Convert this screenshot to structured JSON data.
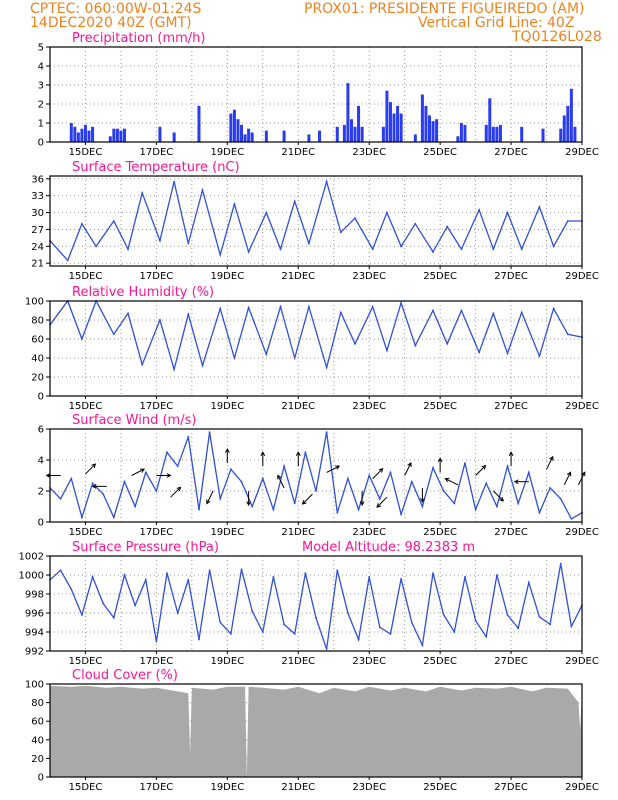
{
  "header": {
    "left_line1": "CPTEC:   060:00W-01:24S",
    "left_line2": "14DEC2020 40Z (GMT)",
    "station": "PROX01: PRESIDENTE FIGUEIREDO (AM)",
    "grid_note": "Vertical Grid Line: 40Z",
    "code": "TQ0126L028"
  },
  "colors": {
    "header": "#f0821e",
    "title": "#ff1493",
    "line": "#2f4fe0",
    "bar": "#2a3cf0",
    "cloud": "#a9a9a9"
  },
  "chart_data": [
    {
      "type": "bar",
      "title": "Precipitation (mm/h)",
      "x_tick_labels": [
        "15DEC",
        "17DEC",
        "19DEC",
        "21DEC",
        "23DEC",
        "25DEC",
        "27DEC",
        "29DEC"
      ],
      "x": [
        14.6,
        14.7,
        14.8,
        14.9,
        15.0,
        15.1,
        15.2,
        15.7,
        15.8,
        15.9,
        16.0,
        16.1,
        17.1,
        17.5,
        18.2,
        19.1,
        19.2,
        19.3,
        19.4,
        19.5,
        19.6,
        19.7,
        20.1,
        20.6,
        21.3,
        21.6,
        22.1,
        22.3,
        22.4,
        22.5,
        22.6,
        22.7,
        22.8,
        23.4,
        23.5,
        23.6,
        23.7,
        23.8,
        23.9,
        24.3,
        24.5,
        24.6,
        24.7,
        24.8,
        24.9,
        25.5,
        25.6,
        25.7,
        26.3,
        26.4,
        26.5,
        26.6,
        26.7,
        27.3,
        27.9,
        28.4,
        28.5,
        28.6,
        28.7,
        28.8
      ],
      "values": [
        1.0,
        0.8,
        0.5,
        0.7,
        0.9,
        0.6,
        0.8,
        0.3,
        0.7,
        0.7,
        0.6,
        0.7,
        0.8,
        0.5,
        1.9,
        1.5,
        1.7,
        1.2,
        0.9,
        0.4,
        0.7,
        0.5,
        0.6,
        0.6,
        0.4,
        0.6,
        0.8,
        0.9,
        3.1,
        1.2,
        0.8,
        1.9,
        0.8,
        0.8,
        2.7,
        2.1,
        1.5,
        1.9,
        1.5,
        0.4,
        2.5,
        1.9,
        1.4,
        1.1,
        1.2,
        0.3,
        1.0,
        0.9,
        0.9,
        2.3,
        0.8,
        0.8,
        0.9,
        0.8,
        0.7,
        0.7,
        1.4,
        1.9,
        2.8,
        0.8
      ],
      "ylim": [
        0,
        5
      ],
      "y_ticks": [
        "0",
        "1",
        "2",
        "3",
        "4",
        "5"
      ]
    },
    {
      "type": "line",
      "title": "Surface Temperature (nC)",
      "x_tick_labels": [
        "15DEC",
        "17DEC",
        "19DEC",
        "21DEC",
        "23DEC",
        "25DEC",
        "27DEC",
        "29DEC"
      ],
      "x": [
        14.0,
        14.5,
        14.9,
        15.3,
        15.8,
        16.2,
        16.6,
        17.1,
        17.5,
        17.9,
        18.3,
        18.8,
        19.2,
        19.6,
        20.1,
        20.5,
        20.9,
        21.3,
        21.8,
        22.2,
        22.6,
        23.1,
        23.5,
        23.9,
        24.3,
        24.8,
        25.2,
        25.6,
        26.1,
        26.5,
        26.9,
        27.3,
        27.8,
        28.2,
        28.6,
        29.0
      ],
      "values": [
        25.0,
        21.5,
        28.0,
        24.0,
        28.5,
        23.5,
        33.5,
        25.0,
        35.5,
        24.5,
        34.0,
        22.5,
        31.5,
        23.0,
        30.0,
        23.5,
        32.0,
        24.5,
        35.5,
        26.5,
        29.0,
        23.5,
        30.0,
        24.0,
        28.0,
        23.0,
        27.5,
        23.5,
        30.5,
        23.5,
        30.0,
        23.5,
        31.0,
        24.0,
        28.5,
        28.5
      ],
      "ylim": [
        20.5,
        36.5
      ],
      "y_ticks": [
        "21",
        "24",
        "27",
        "30",
        "33",
        "36"
      ]
    },
    {
      "type": "line",
      "title": "Relative Humidity (%)",
      "x_tick_labels": [
        "15DEC",
        "17DEC",
        "19DEC",
        "21DEC",
        "23DEC",
        "25DEC",
        "27DEC",
        "29DEC"
      ],
      "x": [
        14.0,
        14.5,
        14.9,
        15.3,
        15.8,
        16.2,
        16.6,
        17.1,
        17.5,
        17.9,
        18.3,
        18.8,
        19.2,
        19.6,
        20.1,
        20.5,
        20.9,
        21.3,
        21.8,
        22.2,
        22.6,
        23.1,
        23.5,
        23.9,
        24.3,
        24.8,
        25.2,
        25.6,
        26.1,
        26.5,
        26.9,
        27.3,
        27.8,
        28.2,
        28.6,
        29.0
      ],
      "values": [
        75,
        100,
        60,
        100,
        65,
        87,
        33,
        80,
        28,
        86,
        32,
        92,
        40,
        93,
        44,
        94,
        40,
        94,
        30,
        88,
        55,
        94,
        48,
        98,
        53,
        90,
        55,
        90,
        46,
        87,
        45,
        88,
        42,
        92,
        65,
        62
      ],
      "ylim": [
        0,
        100
      ],
      "y_ticks": [
        "0",
        "20",
        "40",
        "60",
        "80",
        "100"
      ]
    },
    {
      "type": "line",
      "title": "Surface Wind (m/s)",
      "x_tick_labels": [
        "15DEC",
        "17DEC",
        "19DEC",
        "21DEC",
        "23DEC",
        "25DEC",
        "27DEC",
        "29DEC"
      ],
      "x": [
        14.0,
        14.3,
        14.6,
        14.9,
        15.2,
        15.5,
        15.8,
        16.1,
        16.4,
        16.7,
        17.0,
        17.3,
        17.6,
        17.9,
        18.2,
        18.5,
        18.8,
        19.1,
        19.4,
        19.7,
        20.0,
        20.3,
        20.6,
        20.9,
        21.2,
        21.5,
        21.8,
        22.1,
        22.4,
        22.7,
        23.0,
        23.3,
        23.6,
        23.9,
        24.2,
        24.5,
        24.8,
        25.1,
        25.4,
        25.7,
        26.0,
        26.3,
        26.6,
        26.9,
        27.2,
        27.5,
        27.8,
        28.1,
        28.4,
        28.7,
        29.0
      ],
      "values": [
        2.2,
        1.5,
        2.8,
        0.3,
        2.5,
        1.8,
        0.3,
        2.6,
        1.0,
        3.2,
        2.0,
        4.5,
        3.6,
        5.5,
        0.8,
        5.8,
        1.5,
        3.4,
        2.6,
        1.0,
        2.8,
        0.8,
        3.6,
        1.2,
        4.5,
        2.0,
        5.8,
        0.6,
        2.8,
        0.8,
        3.0,
        1.5,
        3.2,
        0.5,
        2.6,
        1.0,
        3.5,
        2.0,
        1.2,
        3.8,
        0.8,
        2.5,
        1.0,
        3.6,
        1.2,
        3.2,
        0.6,
        2.2,
        1.5,
        0.2,
        0.6
      ],
      "ylim": [
        0,
        6
      ],
      "y_ticks": [
        "0",
        "2",
        "4",
        "6"
      ],
      "vectors": [
        {
          "x": 14.3,
          "y": 3.0,
          "u": -1,
          "v": 0
        },
        {
          "x": 15.0,
          "y": 3.1,
          "u": 1,
          "v": 1
        },
        {
          "x": 15.6,
          "y": 2.3,
          "u": -1,
          "v": 0
        },
        {
          "x": 16.3,
          "y": 3.0,
          "u": 1,
          "v": 0.5
        },
        {
          "x": 17.0,
          "y": 3.0,
          "u": 1,
          "v": 0
        },
        {
          "x": 17.4,
          "y": 1.6,
          "u": 1,
          "v": 1
        },
        {
          "x": 18.6,
          "y": 2.0,
          "u": -0.5,
          "v": -1
        },
        {
          "x": 19.0,
          "y": 3.8,
          "u": 0,
          "v": 1
        },
        {
          "x": 19.6,
          "y": 2.0,
          "u": 0,
          "v": -1
        },
        {
          "x": 20.0,
          "y": 3.6,
          "u": 0,
          "v": 1
        },
        {
          "x": 20.6,
          "y": 2.2,
          "u": -0.5,
          "v": 1
        },
        {
          "x": 21.0,
          "y": 3.6,
          "u": 0,
          "v": 1
        },
        {
          "x": 21.4,
          "y": 1.8,
          "u": -1,
          "v": -1
        },
        {
          "x": 21.8,
          "y": 3.2,
          "u": 1,
          "v": 0.5
        },
        {
          "x": 22.8,
          "y": 2.0,
          "u": 0,
          "v": -1
        },
        {
          "x": 23.1,
          "y": 2.8,
          "u": 1,
          "v": 1
        },
        {
          "x": 23.5,
          "y": 1.6,
          "u": -0.5,
          "v": -0.5
        },
        {
          "x": 24.0,
          "y": 3.0,
          "u": 0.5,
          "v": 1
        },
        {
          "x": 24.5,
          "y": 2.2,
          "u": 0,
          "v": -1
        },
        {
          "x": 25.0,
          "y": 3.2,
          "u": 0,
          "v": 1
        },
        {
          "x": 25.5,
          "y": 2.4,
          "u": -1,
          "v": 0.5
        },
        {
          "x": 26.0,
          "y": 3.0,
          "u": 1,
          "v": 1
        },
        {
          "x": 26.5,
          "y": 2.0,
          "u": 0.5,
          "v": -0.5
        },
        {
          "x": 27.0,
          "y": 3.6,
          "u": 0,
          "v": 1
        },
        {
          "x": 27.5,
          "y": 2.6,
          "u": -1,
          "v": 0
        },
        {
          "x": 28.0,
          "y": 3.4,
          "u": 0.5,
          "v": 1
        },
        {
          "x": 28.5,
          "y": 2.4,
          "u": 0.5,
          "v": 1
        },
        {
          "x": 28.9,
          "y": 2.4,
          "u": 0.5,
          "v": 1
        }
      ]
    },
    {
      "type": "line",
      "title": "Surface Pressure (hPa)",
      "annotation": "Model Altitude: 98.2383 m",
      "x_tick_labels": [
        "15DEC",
        "17DEC",
        "19DEC",
        "21DEC",
        "23DEC",
        "25DEC",
        "27DEC",
        "29DEC"
      ],
      "x": [
        14.0,
        14.3,
        14.6,
        14.9,
        15.2,
        15.5,
        15.8,
        16.1,
        16.4,
        16.7,
        17.0,
        17.3,
        17.6,
        17.9,
        18.2,
        18.5,
        18.8,
        19.1,
        19.4,
        19.7,
        20.0,
        20.3,
        20.6,
        20.9,
        21.2,
        21.5,
        21.8,
        22.1,
        22.4,
        22.7,
        23.0,
        23.3,
        23.6,
        23.9,
        24.2,
        24.5,
        24.8,
        25.1,
        25.4,
        25.7,
        26.0,
        26.3,
        26.6,
        26.9,
        27.2,
        27.5,
        27.8,
        28.1,
        28.4,
        28.7,
        29.0
      ],
      "values": [
        999.5,
        1000.5,
        998.5,
        995.8,
        999.8,
        997.0,
        995.5,
        1000.0,
        996.8,
        999.5,
        993.0,
        1000.2,
        996.0,
        999.5,
        993.2,
        1000.5,
        995.0,
        993.8,
        1000.6,
        996.2,
        994.0,
        999.8,
        994.8,
        993.8,
        1000.2,
        995.5,
        992.2,
        1000.5,
        996.0,
        993.2,
        999.8,
        994.5,
        993.8,
        999.6,
        995.0,
        992.6,
        1000.2,
        995.8,
        994.0,
        999.8,
        995.2,
        993.5,
        1000.0,
        995.8,
        994.4,
        999.2,
        995.6,
        994.8,
        1001.2,
        994.6,
        996.8
      ],
      "ylim": [
        992,
        1002
      ],
      "y_ticks": [
        "992",
        "994",
        "996",
        "998",
        "1000",
        "1002"
      ]
    },
    {
      "type": "area",
      "title": "Cloud Cover (%)",
      "x_tick_labels": [
        "15DEC",
        "17DEC",
        "19DEC",
        "21DEC",
        "23DEC",
        "25DEC",
        "27DEC",
        "29DEC"
      ],
      "x": [
        14.0,
        14.6,
        15.0,
        15.6,
        16.0,
        16.6,
        17.0,
        17.6,
        17.9,
        17.95,
        18.0,
        18.6,
        19.0,
        19.5,
        19.55,
        19.6,
        20.0,
        20.6,
        21.0,
        21.6,
        22.0,
        22.6,
        23.0,
        23.6,
        24.0,
        24.6,
        25.0,
        25.6,
        26.0,
        26.6,
        27.0,
        27.6,
        28.0,
        28.6,
        28.9,
        28.95,
        29.0
      ],
      "values": [
        98,
        97,
        98,
        96,
        97,
        95,
        96,
        92,
        90,
        25,
        96,
        94,
        97,
        97,
        0,
        97,
        96,
        94,
        97,
        90,
        96,
        92,
        97,
        93,
        96,
        92,
        97,
        93,
        96,
        95,
        97,
        92,
        96,
        95,
        80,
        50,
        95
      ],
      "ylim": [
        0,
        100
      ],
      "y_ticks": [
        "0",
        "20",
        "40",
        "60",
        "80",
        "100"
      ]
    }
  ]
}
